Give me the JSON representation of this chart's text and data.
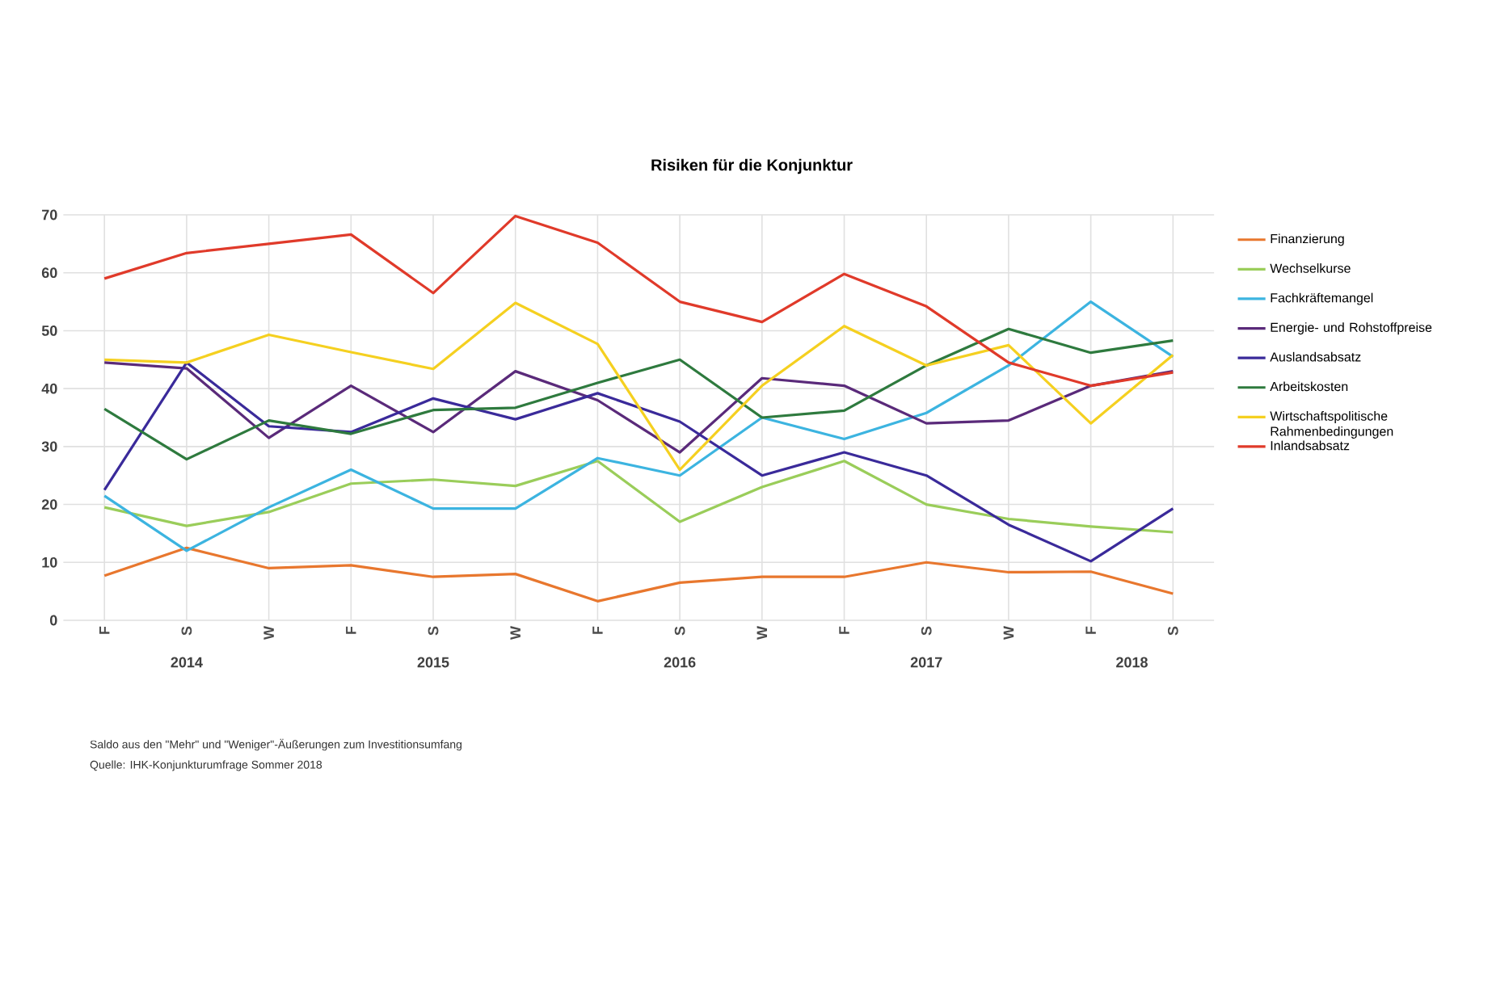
{
  "chart_data": {
    "type": "line",
    "title": "Risiken für die Konjunktur",
    "categories": [
      "F",
      "S",
      "W",
      "F",
      "S",
      "W",
      "F",
      "S",
      "W",
      "F",
      "S",
      "W",
      "F",
      "S"
    ],
    "series": [
      {
        "name": "Finanzierung",
        "color": "#e8772e",
        "values": [
          7.7,
          12.5,
          9,
          9.5,
          7.5,
          8,
          3.3,
          6.5,
          7.5,
          7.5,
          10,
          8.3,
          8.4,
          4.6
        ]
      },
      {
        "name": "Wechselkurse",
        "color": "#9acd5a",
        "values": [
          19.5,
          16.3,
          18.7,
          23.6,
          24.3,
          23.2,
          27.5,
          17,
          23,
          27.5,
          20,
          17.5,
          16.2,
          15.2
        ]
      },
      {
        "name": "Fachkräftemangel",
        "color": "#3cb4e0",
        "values": [
          21.5,
          12,
          19.5,
          26,
          19.3,
          19.3,
          28,
          25,
          35,
          31.3,
          35.8,
          44,
          55,
          45.5
        ]
      },
      {
        "name": "Energie- und Rohstoffpreise",
        "color": "#5a2a7a",
        "values": [
          44.5,
          43.5,
          31.5,
          40.5,
          32.5,
          43,
          38,
          29,
          41.8,
          40.5,
          34,
          34.5,
          40.5,
          43
        ]
      },
      {
        "name": "Auslandsabsatz",
        "color": "#3a2a9a",
        "values": [
          22.5,
          44.5,
          33.5,
          32.5,
          38.3,
          34.7,
          39.2,
          34.3,
          25,
          29,
          25,
          16.5,
          10.2,
          19.3
        ]
      },
      {
        "name": "Arbeitskosten",
        "color": "#2e7a3e",
        "values": [
          36.5,
          27.8,
          34.5,
          32.2,
          36.3,
          36.7,
          41,
          45,
          35,
          36.2,
          44,
          50.3,
          46.2,
          48.3
        ]
      },
      {
        "name": "Wirtschaftspolitische Rahmenbedingungen",
        "color": "#f5d020",
        "values": [
          45,
          44.5,
          49.3,
          46.3,
          43.4,
          54.8,
          47.7,
          26,
          40.5,
          50.8,
          44,
          47.5,
          34,
          45.8
        ]
      },
      {
        "name": "Inlandsabsatz",
        "color": "#e03a2a",
        "values": [
          59,
          63.4,
          65,
          66.6,
          56.5,
          69.8,
          65.2,
          55,
          51.5,
          59.8,
          54.2,
          44.5,
          40.5,
          42.8
        ]
      }
    ],
    "ylim": [
      0,
      70
    ],
    "yticks": [
      0,
      10,
      20,
      30,
      40,
      50,
      60,
      70
    ],
    "grid": true,
    "legend": "right",
    "annotations": [
      "2014",
      "2015",
      "2016",
      "2017",
      "2018",
      "Saldo aus den \"Mehr\" und \"Weniger\"-Äußerungen zum Investitionsumfang",
      "Quelle: IHK-Konjunkturumfrage Sommer 2018"
    ]
  }
}
